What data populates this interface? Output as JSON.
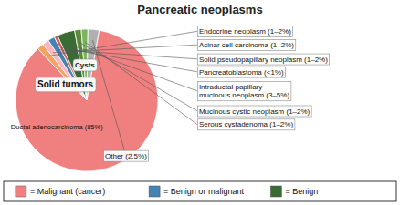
{
  "chart_data": {
    "type": "pie",
    "title": "Pancreatic neoplasms",
    "categories": [
      "Ductal adenocarcinoma (85%)",
      "Endocrine neoplasm (1–2%)",
      "Acinar cell carcinoma (1–2%)",
      "Solid pseudopapillary neoplasm (1–2%)",
      "Pancreatoblastoma (<1%)",
      "Intraductal papillary\nmucinous neoplasm (3–5%)",
      "Mucinous cystic neoplasm (1–2%)",
      "Serous cystadenoma (1–2%)",
      "Other (2.5%)"
    ],
    "values": [
      85,
      1.5,
      1.5,
      1.5,
      0.8,
      4.0,
      1.5,
      1.5,
      2.5
    ],
    "colors": [
      "#F08080",
      "#F4A460",
      "#FFB6C1",
      "#4682B4",
      "#CD5C5C",
      "#3A6B35",
      "#5A8A3A",
      "#7AB55C",
      "#B0B0B0"
    ],
    "annotations": [
      "Solid tumors",
      "Cysts"
    ],
    "groups": [
      {
        "name": "= Malignant (cancer)",
        "color": "#F08080"
      },
      {
        "name": "= Benign or malignant",
        "color": "#4682B4"
      },
      {
        "name": "= Benign",
        "color": "#3A6B35"
      }
    ]
  }
}
